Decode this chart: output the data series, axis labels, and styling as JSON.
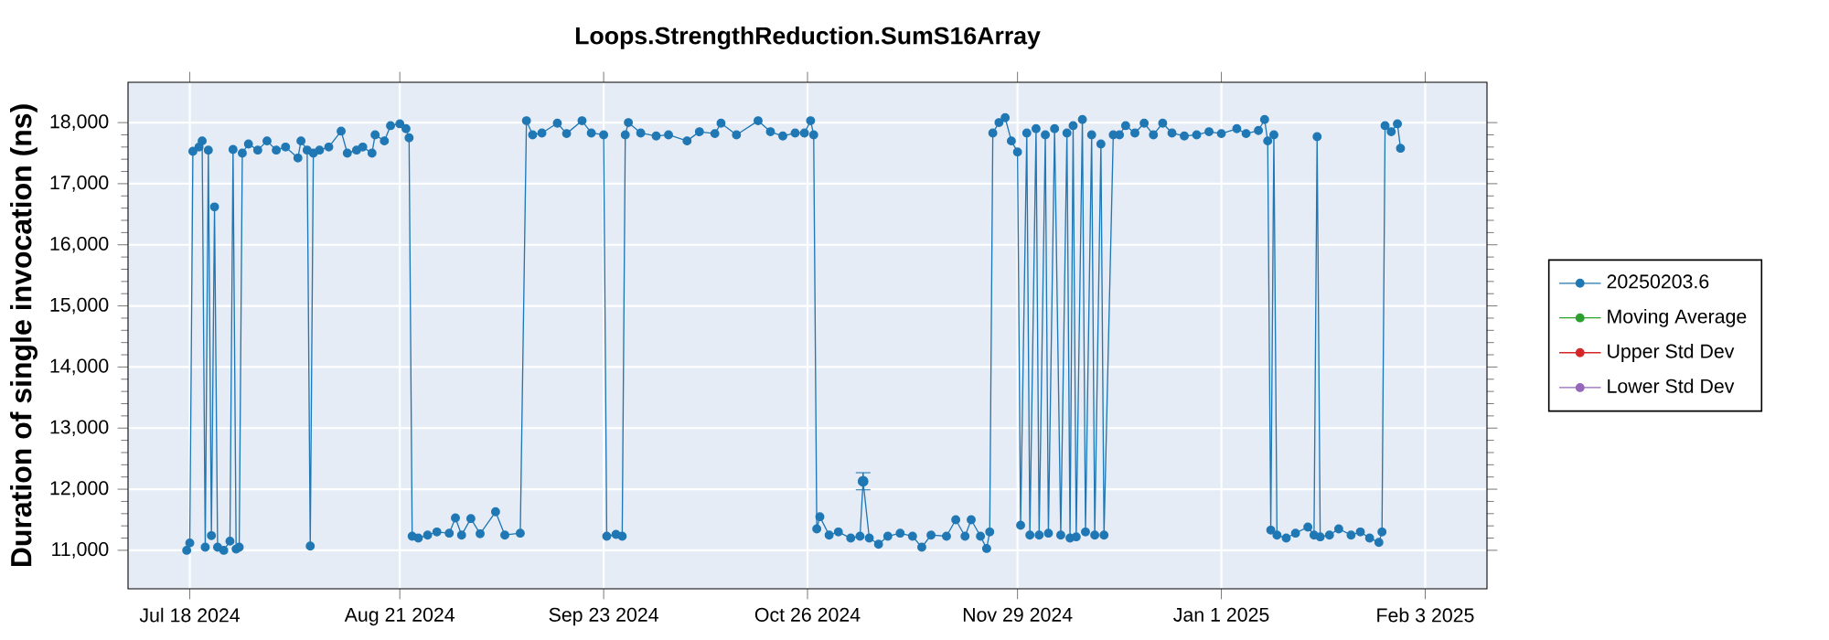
{
  "chart_data": {
    "type": "line",
    "title": "Loops.StrengthReduction.SumS16Array",
    "ylabel": "Duration of single invocation (ns)",
    "xlim": [
      "2024-07-08",
      "2025-02-13"
    ],
    "ylim": [
      10370,
      18660
    ],
    "xticks": [
      {
        "value": "2024-07-18",
        "label": "Jul 18 2024"
      },
      {
        "value": "2024-08-21",
        "label": "Aug 21 2024"
      },
      {
        "value": "2024-09-23",
        "label": "Sep 23 2024"
      },
      {
        "value": "2024-10-26",
        "label": "Oct 26 2024"
      },
      {
        "value": "2024-11-29",
        "label": "Nov 29 2024"
      },
      {
        "value": "2025-01-01",
        "label": "Jan 1 2025"
      },
      {
        "value": "2025-02-03",
        "label": "Feb 3 2025"
      }
    ],
    "yticks": [
      {
        "value": 11000,
        "label": "11,000"
      },
      {
        "value": 12000,
        "label": "12,000"
      },
      {
        "value": 13000,
        "label": "13,000"
      },
      {
        "value": 14000,
        "label": "14,000"
      },
      {
        "value": 15000,
        "label": "15,000"
      },
      {
        "value": 16000,
        "label": "16,000"
      },
      {
        "value": 17000,
        "label": "17,000"
      },
      {
        "value": 18000,
        "label": "18,000"
      }
    ],
    "grid": true,
    "legend": "right",
    "marker": "circle",
    "line_style": "solid",
    "series": [
      {
        "name": "20250203.6",
        "color": "#1f77b4",
        "x": [
          "2024-07-17T12:00",
          "2024-07-18",
          "2024-07-18T12:00",
          "2024-07-19T12:00",
          "2024-07-20",
          "2024-07-20T12:00",
          "2024-07-21",
          "2024-07-21T12:00",
          "2024-07-22",
          "2024-07-22T12:00",
          "2024-07-23T12:00",
          "2024-07-24T12:00",
          "2024-07-25",
          "2024-07-25T12:00",
          "2024-07-26",
          "2024-07-26T12:00",
          "2024-07-27T12:00",
          "2024-07-29",
          "2024-07-30T12:00",
          "2024-08-01",
          "2024-08-02T12:00",
          "2024-08-04T12:00",
          "2024-08-05",
          "2024-08-06",
          "2024-08-06T12:00",
          "2024-08-07",
          "2024-08-08",
          "2024-08-09T12:00",
          "2024-08-11T12:00",
          "2024-08-12T12:00",
          "2024-08-14",
          "2024-08-15",
          "2024-08-16T12:00",
          "2024-08-17",
          "2024-08-18T12:00",
          "2024-08-19T12:00",
          "2024-08-21",
          "2024-08-22",
          "2024-08-22T12:00",
          "2024-08-23",
          "2024-08-24",
          "2024-08-25T12:00",
          "2024-08-27",
          "2024-08-29",
          "2024-08-30",
          "2024-08-31",
          "2024-09-01T12:00",
          "2024-09-03",
          "2024-09-05T12:00",
          "2024-09-07",
          "2024-09-09T12:00",
          "2024-09-10T12:00",
          "2024-09-11T12:00",
          "2024-09-13",
          "2024-09-15T12:00",
          "2024-09-17",
          "2024-09-19T12:00",
          "2024-09-21",
          "2024-09-23",
          "2024-09-23T12:00",
          "2024-09-25",
          "2024-09-26",
          "2024-09-26T12:00",
          "2024-09-27",
          "2024-09-29",
          "2024-10-01T12:00",
          "2024-10-03T12:00",
          "2024-10-06T12:00",
          "2024-10-08T12:00",
          "2024-10-11",
          "2024-10-12",
          "2024-10-14T12:00",
          "2024-10-18",
          "2024-10-20",
          "2024-10-22",
          "2024-10-24",
          "2024-10-25T12:00",
          "2024-10-26T12:00",
          "2024-10-27",
          "2024-10-27T12:00",
          "2024-10-28",
          "2024-10-29T12:00",
          "2024-10-31",
          "2024-11-02",
          "2024-11-03T12:00",
          "2024-11-04",
          "2024-11-05",
          "2024-11-06T12:00",
          "2024-11-08",
          "2024-11-10",
          "2024-11-12",
          "2024-11-13T12:00",
          "2024-11-15",
          "2024-11-17T12:00",
          "2024-11-19",
          "2024-11-20T12:00",
          "2024-11-21T12:00",
          "2024-11-23",
          "2024-11-24",
          "2024-11-24T12:00",
          "2024-11-25",
          "2024-11-26",
          "2024-11-27",
          "2024-11-28",
          "2024-11-29",
          "2024-11-29T12:00",
          "2024-11-30T12:00",
          "2024-12-01",
          "2024-12-02",
          "2024-12-02T12:00",
          "2024-12-03T12:00",
          "2024-12-04",
          "2024-12-05",
          "2024-12-06",
          "2024-12-07",
          "2024-12-07T12:00",
          "2024-12-08",
          "2024-12-08T12:00",
          "2024-12-09T12:00",
          "2024-12-10",
          "2024-12-11",
          "2024-12-11T12:00",
          "2024-12-12T12:00",
          "2024-12-13",
          "2024-12-14T12:00",
          "2024-12-15T12:00",
          "2024-12-16T12:00",
          "2024-12-18",
          "2024-12-19T12:00",
          "2024-12-21",
          "2024-12-22T12:00",
          "2024-12-24",
          "2024-12-26",
          "2024-12-28",
          "2024-12-30",
          "2025-01-01",
          "2025-01-03T12:00",
          "2025-01-05",
          "2025-01-07",
          "2025-01-08",
          "2025-01-08T12:00",
          "2025-01-09",
          "2025-01-09T12:00",
          "2025-01-10",
          "2025-01-11T12:00",
          "2025-01-13",
          "2025-01-15",
          "2025-01-16",
          "2025-01-16T12:00",
          "2025-01-17",
          "2025-01-18T12:00",
          "2025-01-20",
          "2025-01-22",
          "2025-01-23T12:00",
          "2025-01-25",
          "2025-01-26T12:00",
          "2025-01-27",
          "2025-01-27T12:00",
          "2025-01-28T12:00",
          "2025-01-29T12:00",
          "2025-01-30"
        ],
        "values": [
          11000,
          11120,
          17530,
          17600,
          17700,
          11050,
          17550,
          11240,
          16620,
          11050,
          11000,
          11150,
          17560,
          11020,
          11050,
          17500,
          17650,
          17550,
          17700,
          17550,
          17600,
          17420,
          17700,
          17550,
          11070,
          17500,
          17550,
          17600,
          17860,
          17500,
          17550,
          17600,
          17500,
          17800,
          17700,
          17950,
          17980,
          17900,
          17750,
          11230,
          11200,
          11250,
          11300,
          11280,
          11530,
          11250,
          11520,
          11270,
          11630,
          11250,
          11280,
          18030,
          17800,
          17830,
          17990,
          17820,
          18030,
          17830,
          17800,
          11230,
          11260,
          11230,
          17800,
          18000,
          17830,
          17780,
          17800,
          17700,
          17850,
          17820,
          17990,
          17800,
          18030,
          17850,
          17780,
          17830,
          17830,
          18030,
          17800,
          11350,
          11550,
          11250,
          11300,
          11200,
          11230,
          12130,
          11200,
          11100,
          11230,
          11280,
          11230,
          11050,
          11250,
          11230,
          11500,
          11230,
          11500,
          11230,
          11030,
          11300,
          17830,
          18000,
          18080,
          17700,
          17520,
          11410,
          17830,
          11250,
          17900,
          11250,
          17800,
          11280,
          17900,
          11250,
          17830,
          11200,
          17950,
          11220,
          18050,
          11300,
          17800,
          11250,
          17650,
          11250,
          17800,
          17800,
          17950,
          17830,
          17990,
          17800,
          17990,
          17830,
          17780,
          17800,
          17850,
          17820,
          17900,
          17820,
          17870,
          18050,
          17700,
          11330,
          17800,
          11250,
          11200,
          11280,
          11380,
          11250,
          17770,
          11220,
          11250,
          11350,
          11250,
          11300,
          11200,
          11130,
          11300,
          17950,
          17850,
          17980,
          17580
        ],
        "errors": [
          null,
          null,
          null,
          null,
          null,
          null,
          null,
          null,
          null,
          null,
          null,
          null,
          null,
          null,
          null,
          null,
          null,
          null,
          null,
          null,
          null,
          null,
          null,
          null,
          null,
          null,
          null,
          null,
          null,
          null,
          null,
          null,
          null,
          null,
          null,
          null,
          null,
          null,
          null,
          null,
          null,
          null,
          null,
          null,
          null,
          null,
          null,
          null,
          null,
          null,
          null,
          null,
          null,
          null,
          null,
          null,
          null,
          null,
          null,
          null,
          null,
          null,
          null,
          null,
          null,
          null,
          null,
          null,
          null,
          null,
          null,
          null,
          null,
          null,
          null,
          null,
          null,
          null,
          null,
          null,
          null,
          null,
          null,
          null,
          null,
          140,
          null,
          null,
          null,
          null,
          null,
          null,
          null,
          null,
          null,
          null,
          null,
          null,
          null,
          null,
          null,
          null,
          null,
          null,
          null,
          null,
          null,
          null,
          null,
          null,
          null,
          null,
          null,
          null,
          null,
          null,
          null,
          null,
          null,
          null,
          null,
          null,
          null,
          null,
          null,
          null,
          null,
          null,
          null,
          null,
          null,
          null,
          null,
          null,
          null,
          null,
          null,
          null,
          null,
          null,
          null,
          null,
          null,
          null,
          null,
          null,
          null,
          null,
          null,
          null,
          null,
          null,
          null,
          null,
          null,
          null,
          null,
          null,
          null,
          null,
          null
        ]
      },
      {
        "name": "Moving Average",
        "color": "#2ca02c"
      },
      {
        "name": "Upper Std Dev",
        "color": "#d62728"
      },
      {
        "name": "Lower Std Dev",
        "color": "#9467bd"
      }
    ]
  }
}
